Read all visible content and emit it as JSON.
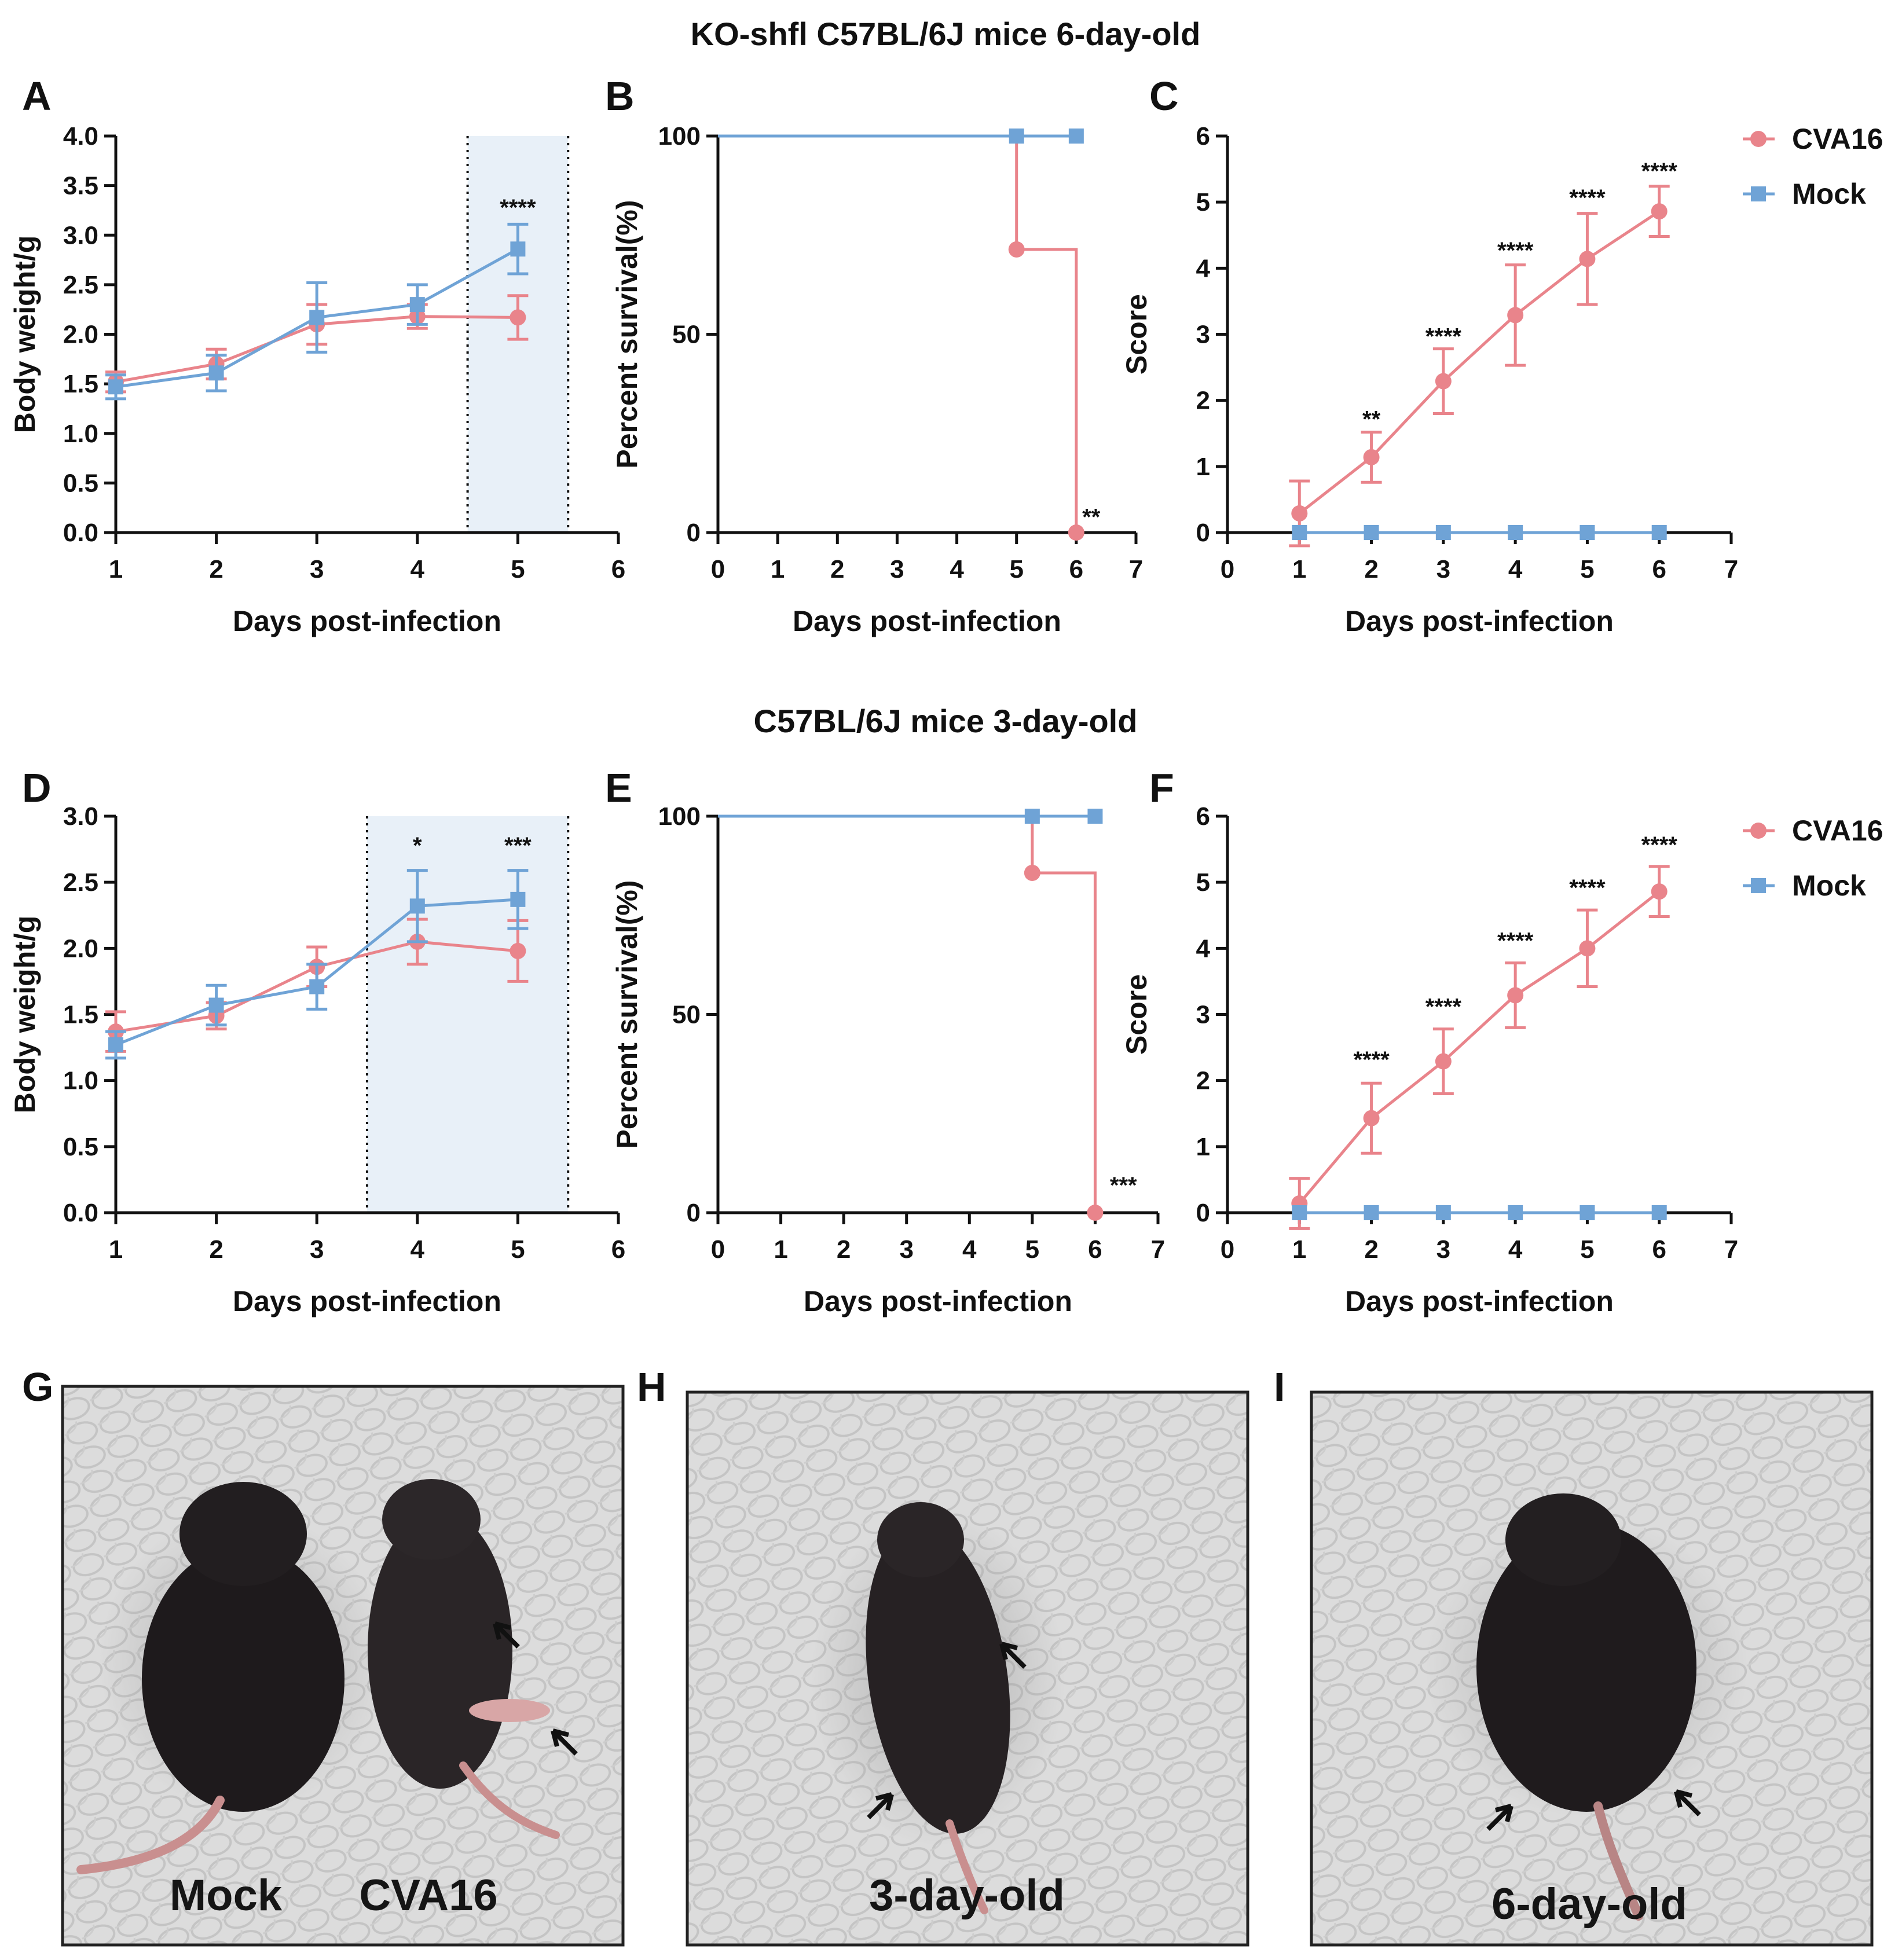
{
  "figure": {
    "row1_title": "KO-shfl  C57BL/6J mice  6-day-old",
    "row2_title": "C57BL/6J mice  3-day-old",
    "panel_letters": [
      "A",
      "B",
      "C",
      "D",
      "E",
      "F",
      "G",
      "H",
      "I"
    ],
    "colors": {
      "cva16": "#e9848b",
      "mock": "#6fa3d6",
      "shade": "#e8f0f8",
      "axis": "#111111"
    }
  },
  "chart_data": [
    {
      "panel": "A",
      "type": "line",
      "xlabel": "Days post-infection",
      "ylabel": "Body weight/g",
      "xlim": [
        1,
        6
      ],
      "ylim": [
        0,
        4.0
      ],
      "xticks": [
        "1",
        "2",
        "3",
        "4",
        "5",
        "6"
      ],
      "yticks": [
        "0.0",
        "0.5",
        "1.0",
        "1.5",
        "2.0",
        "2.5",
        "3.0",
        "3.5",
        "4.0"
      ],
      "shaded_range": [
        4.5,
        5.5
      ],
      "series": [
        {
          "name": "CVA16",
          "x": [
            1,
            2,
            3,
            4,
            5
          ],
          "values": [
            1.52,
            1.7,
            2.1,
            2.18,
            2.17
          ],
          "err": [
            0.1,
            0.15,
            0.2,
            0.12,
            0.22
          ]
        },
        {
          "name": "Mock",
          "x": [
            1,
            2,
            3,
            4,
            5
          ],
          "values": [
            1.47,
            1.61,
            2.17,
            2.3,
            2.86
          ],
          "err": [
            0.12,
            0.18,
            0.35,
            0.2,
            0.25
          ]
        }
      ],
      "annotations": [
        {
          "x": 5,
          "y": 3.2,
          "text": "****"
        }
      ]
    },
    {
      "panel": "B",
      "type": "line",
      "xlabel": "Days post-infection",
      "ylabel": "Percent survival(%)",
      "xlim": [
        0,
        7
      ],
      "ylim": [
        0,
        100
      ],
      "xticks": [
        "0",
        "1",
        "2",
        "3",
        "4",
        "5",
        "6",
        "7"
      ],
      "yticks": [
        "0",
        "50",
        "100"
      ],
      "series": [
        {
          "name": "CVA16",
          "step": true,
          "x": [
            0,
            5,
            6
          ],
          "values": [
            100,
            71.4,
            0
          ],
          "markers": [
            [
              5,
              71.4
            ],
            [
              6,
              0
            ]
          ]
        },
        {
          "name": "Mock",
          "step": true,
          "x": [
            0,
            6
          ],
          "values": [
            100,
            100
          ],
          "markers": [
            [
              5,
              100
            ],
            [
              6,
              100
            ]
          ]
        }
      ],
      "annotations": [
        {
          "x": 6.25,
          "y": 2,
          "text": "**"
        }
      ]
    },
    {
      "panel": "C",
      "type": "line",
      "xlabel": "Days post-infection",
      "ylabel": "Score",
      "xlim": [
        0,
        7
      ],
      "ylim": [
        0,
        6
      ],
      "xticks": [
        "0",
        "1",
        "2",
        "3",
        "4",
        "5",
        "6",
        "7"
      ],
      "yticks": [
        "0",
        "1",
        "2",
        "3",
        "4",
        "5",
        "6"
      ],
      "legend": [
        "CVA16",
        "Mock"
      ],
      "series": [
        {
          "name": "CVA16",
          "x": [
            1,
            2,
            3,
            4,
            5,
            6
          ],
          "values": [
            0.29,
            1.14,
            2.29,
            3.29,
            4.14,
            4.86
          ],
          "err": [
            0.49,
            0.38,
            0.49,
            0.76,
            0.69,
            0.38
          ]
        },
        {
          "name": "Mock",
          "x": [
            1,
            2,
            3,
            4,
            5,
            6
          ],
          "values": [
            0,
            0,
            0,
            0,
            0,
            0
          ],
          "err": [
            0,
            0,
            0,
            0,
            0,
            0
          ]
        }
      ],
      "annotations": [
        {
          "x": 2,
          "y": 1.6,
          "text": "**"
        },
        {
          "x": 3,
          "y": 2.85,
          "text": "****"
        },
        {
          "x": 4,
          "y": 4.15,
          "text": "****"
        },
        {
          "x": 5,
          "y": 4.95,
          "text": "****"
        },
        {
          "x": 6,
          "y": 5.35,
          "text": "****"
        }
      ]
    },
    {
      "panel": "D",
      "type": "line",
      "xlabel": "Days post-infection",
      "ylabel": "Body weight/g",
      "xlim": [
        1,
        6
      ],
      "ylim": [
        0,
        3.0
      ],
      "xticks": [
        "1",
        "2",
        "3",
        "4",
        "5",
        "6"
      ],
      "yticks": [
        "0.0",
        "0.5",
        "1.0",
        "1.5",
        "2.0",
        "2.5",
        "3.0"
      ],
      "shaded_range": [
        3.5,
        5.5
      ],
      "series": [
        {
          "name": "CVA16",
          "x": [
            1,
            2,
            3,
            4,
            5
          ],
          "values": [
            1.37,
            1.49,
            1.86,
            2.05,
            1.98
          ],
          "err": [
            0.15,
            0.1,
            0.15,
            0.17,
            0.23
          ]
        },
        {
          "name": "Mock",
          "x": [
            1,
            2,
            3,
            4,
            5
          ],
          "values": [
            1.27,
            1.57,
            1.71,
            2.32,
            2.37
          ],
          "err": [
            0.1,
            0.15,
            0.17,
            0.27,
            0.22
          ]
        }
      ],
      "annotations": [
        {
          "x": 4,
          "y": 2.72,
          "text": "*"
        },
        {
          "x": 5,
          "y": 2.72,
          "text": "***"
        }
      ]
    },
    {
      "panel": "E",
      "type": "line",
      "xlabel": "Days post-infection",
      "ylabel": "Percent survival(%)",
      "xlim": [
        0,
        7
      ],
      "ylim": [
        0,
        100
      ],
      "xticks": [
        "0",
        "1",
        "2",
        "3",
        "4",
        "5",
        "6",
        "7"
      ],
      "yticks": [
        "0",
        "50",
        "100"
      ],
      "series": [
        {
          "name": "CVA16",
          "step": true,
          "x": [
            0,
            5,
            6
          ],
          "values": [
            100,
            85.7,
            0
          ],
          "markers": [
            [
              5,
              85.7
            ],
            [
              6,
              0
            ]
          ]
        },
        {
          "name": "Mock",
          "step": true,
          "x": [
            0,
            6
          ],
          "values": [
            100,
            100
          ],
          "markers": [
            [
              5,
              100
            ],
            [
              6,
              100
            ]
          ]
        }
      ],
      "annotations": [
        {
          "x": 6.45,
          "y": 5,
          "text": "***"
        }
      ]
    },
    {
      "panel": "F",
      "type": "line",
      "xlabel": "Days post-infection",
      "ylabel": "Score",
      "xlim": [
        0,
        7
      ],
      "ylim": [
        0,
        6
      ],
      "xticks": [
        "0",
        "1",
        "2",
        "3",
        "4",
        "5",
        "6",
        "7"
      ],
      "yticks": [
        "0",
        "1",
        "2",
        "3",
        "4",
        "5",
        "6"
      ],
      "legend": [
        "CVA16",
        "Mock"
      ],
      "series": [
        {
          "name": "CVA16",
          "x": [
            1,
            2,
            3,
            4,
            5,
            6
          ],
          "values": [
            0.14,
            1.43,
            2.29,
            3.29,
            4.0,
            4.86
          ],
          "err": [
            0.38,
            0.53,
            0.49,
            0.49,
            0.58,
            0.38
          ]
        },
        {
          "name": "Mock",
          "x": [
            1,
            2,
            3,
            4,
            5,
            6
          ],
          "values": [
            0,
            0,
            0,
            0,
            0,
            0
          ],
          "err": [
            0,
            0,
            0,
            0,
            0,
            0
          ]
        }
      ],
      "annotations": [
        {
          "x": 2,
          "y": 2.2,
          "text": "****"
        },
        {
          "x": 3,
          "y": 3.0,
          "text": "****"
        },
        {
          "x": 4,
          "y": 4.0,
          "text": "****"
        },
        {
          "x": 5,
          "y": 4.8,
          "text": "****"
        },
        {
          "x": 6,
          "y": 5.45,
          "text": "****"
        }
      ]
    }
  ],
  "photos": {
    "g_labels": [
      "Mock",
      "CVA16"
    ],
    "h_label": "3-day-old",
    "i_label": "6-day-old"
  }
}
